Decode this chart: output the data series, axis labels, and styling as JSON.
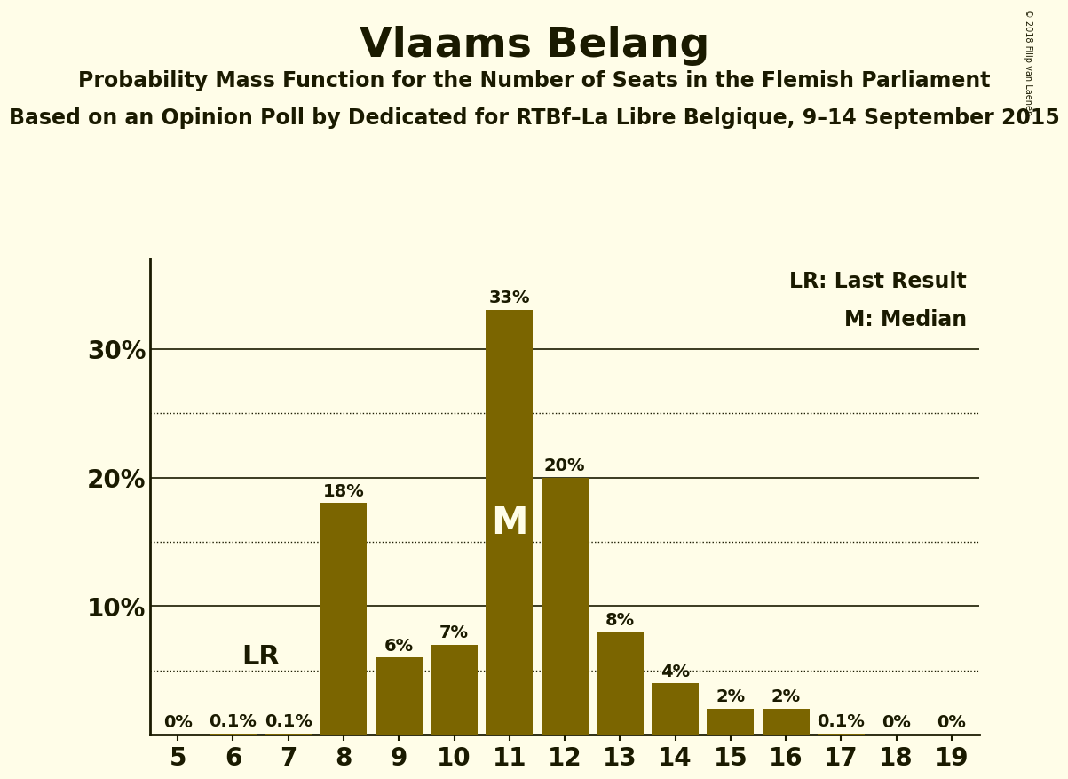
{
  "title": "Vlaams Belang",
  "subtitle": "Probability Mass Function for the Number of Seats in the Flemish Parliament",
  "subsubtitle": "Based on an Opinion Poll by Dedicated for RTBf–La Libre Belgique, 9–14 September 2015",
  "copyright": "© 2018 Filip van Laenen",
  "seats": [
    5,
    6,
    7,
    8,
    9,
    10,
    11,
    12,
    13,
    14,
    15,
    16,
    17,
    18,
    19
  ],
  "probabilities": [
    0.0,
    0.001,
    0.001,
    0.18,
    0.06,
    0.07,
    0.33,
    0.2,
    0.08,
    0.04,
    0.02,
    0.02,
    0.001,
    0.0,
    0.0
  ],
  "bar_labels": [
    "0%",
    "0.1%",
    "0.1%",
    "18%",
    "6%",
    "7%",
    "33%",
    "20%",
    "8%",
    "4%",
    "2%",
    "2%",
    "0.1%",
    "0%",
    "0%"
  ],
  "bar_color": "#7B6500",
  "background_color": "#FFFDE8",
  "axis_color": "#1a1a00",
  "last_result_seat": 7,
  "median_seat": 11,
  "yticks": [
    0.0,
    0.1,
    0.2,
    0.3
  ],
  "ytick_labels": [
    "",
    "10%",
    "20%",
    "30%"
  ],
  "dotted_gridlines": [
    0.05,
    0.15,
    0.25
  ],
  "solid_gridlines": [
    0.1,
    0.2,
    0.3
  ],
  "ylim": [
    0,
    0.37
  ],
  "legend_lr": "LR: Last Result",
  "legend_m": "M: Median",
  "title_fontsize": 34,
  "subtitle_fontsize": 17,
  "subsubtitle_fontsize": 17,
  "bar_label_fontsize": 14,
  "ytick_fontsize": 20,
  "xtick_fontsize": 20,
  "median_label_fontsize": 30,
  "lr_label_fontsize": 22,
  "legend_fontsize": 17
}
